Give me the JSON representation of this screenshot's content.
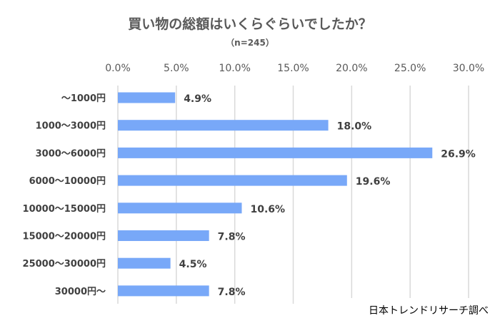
{
  "chart_data": {
    "type": "bar",
    "orientation": "horizontal",
    "title": "買い物の総額はいくらぐらいでしたか？",
    "subtitle": "（n=245）",
    "categories": [
      "～1000円",
      "1000～3000円",
      "3000～6000円",
      "6000～10000円",
      "10000～15000円",
      "15000～20000円",
      "25000～30000円",
      "30000円～"
    ],
    "values": [
      4.9,
      18.0,
      26.9,
      19.6,
      10.6,
      7.8,
      4.5,
      7.8
    ],
    "data_labels": [
      "4.9%",
      "18.0%",
      "26.9%",
      "19.6%",
      "10.6%",
      "7.8%",
      "4.5%",
      "7.8%"
    ],
    "xlim": [
      0,
      30
    ],
    "x_ticks": [
      "0.0%",
      "5.0%",
      "10.0%",
      "15.0%",
      "20.0%",
      "25.0%",
      "30.0%"
    ],
    "x_axis_position": "top",
    "grid": true,
    "xlabel": "",
    "ylabel": "",
    "bar_color": "#78A8F8"
  },
  "source": "日本トレンドリサーチ調べ"
}
